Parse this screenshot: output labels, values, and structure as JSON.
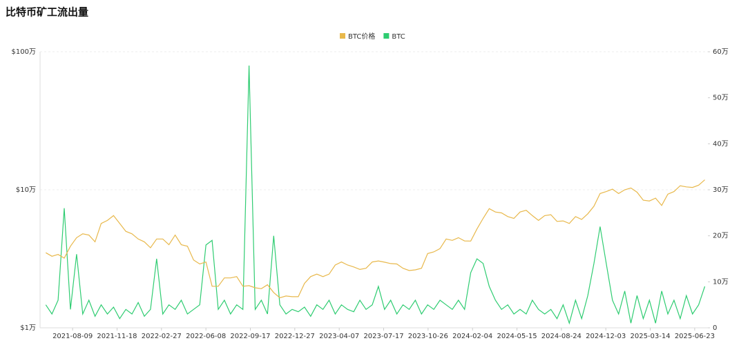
{
  "chart_data": {
    "type": "line",
    "title": "比特币矿工流出量",
    "log_y": true,
    "grid": true,
    "legend": "top",
    "x": [
      "2021-06-09",
      "2021-06-23",
      "2021-07-07",
      "2021-07-21",
      "2021-08-04",
      "2021-08-18",
      "2021-09-01",
      "2021-09-15",
      "2021-09-29",
      "2021-10-13",
      "2021-10-27",
      "2021-11-10",
      "2021-11-24",
      "2021-12-08",
      "2021-12-22",
      "2022-01-05",
      "2022-01-19",
      "2022-02-02",
      "2022-02-16",
      "2022-03-02",
      "2022-03-16",
      "2022-03-30",
      "2022-04-13",
      "2022-04-27",
      "2022-05-11",
      "2022-05-25",
      "2022-06-08",
      "2022-06-22",
      "2022-07-06",
      "2022-07-20",
      "2022-08-03",
      "2022-08-17",
      "2022-08-31",
      "2022-09-14",
      "2022-09-28",
      "2022-10-12",
      "2022-10-26",
      "2022-11-09",
      "2022-11-23",
      "2022-12-07",
      "2022-12-21",
      "2023-01-04",
      "2023-01-18",
      "2023-02-01",
      "2023-02-15",
      "2023-03-01",
      "2023-03-15",
      "2023-03-29",
      "2023-04-12",
      "2023-04-26",
      "2023-05-10",
      "2023-05-24",
      "2023-06-07",
      "2023-06-21",
      "2023-07-05",
      "2023-07-19",
      "2023-08-02",
      "2023-08-16",
      "2023-08-30",
      "2023-09-13",
      "2023-09-27",
      "2023-10-11",
      "2023-10-25",
      "2023-11-08",
      "2023-11-22",
      "2023-12-06",
      "2023-12-20",
      "2024-01-03",
      "2024-01-17",
      "2024-01-31",
      "2024-02-14",
      "2024-02-28",
      "2024-03-13",
      "2024-03-27",
      "2024-04-10",
      "2024-04-24",
      "2024-05-08",
      "2024-05-22",
      "2024-06-05",
      "2024-06-19",
      "2024-07-03",
      "2024-07-17",
      "2024-07-31",
      "2024-08-14",
      "2024-08-28",
      "2024-09-11",
      "2024-09-25",
      "2024-10-09",
      "2024-10-23",
      "2024-11-06",
      "2024-11-20",
      "2024-12-04",
      "2024-12-18",
      "2025-01-01",
      "2025-01-15",
      "2025-01-29",
      "2025-02-12",
      "2025-02-26",
      "2025-03-12",
      "2025-03-26",
      "2025-04-09",
      "2025-04-23",
      "2025-05-07",
      "2025-05-21",
      "2025-06-04",
      "2025-06-18",
      "2025-07-02",
      "2025-07-16"
    ],
    "xlim": [
      "2021-05-27",
      "2025-07-23"
    ],
    "xticks": [
      "2021-08-09",
      "2021-11-18",
      "2022-02-27",
      "2022-06-08",
      "2022-09-17",
      "2022-12-27",
      "2023-04-07",
      "2023-07-17",
      "2023-10-26",
      "2024-02-04",
      "2024-05-15",
      "2024-08-24",
      "2024-12-03",
      "2025-03-14",
      "2025-06-23"
    ],
    "ylim": [
      10000,
      1000000
    ],
    "yticks": [
      {
        "value": 10000,
        "label": "$1万"
      },
      {
        "value": 100000,
        "label": "$10万"
      },
      {
        "value": 1000000,
        "label": "$100万"
      }
    ],
    "y2lim": [
      0,
      600000
    ],
    "y2ticks": [
      0,
      {
        "value": 100000,
        "label": "10万"
      },
      {
        "value": 200000,
        "label": "20万"
      },
      {
        "value": 300000,
        "label": "30万"
      },
      {
        "value": 400000,
        "label": "40万"
      },
      {
        "value": 500000,
        "label": "50万"
      },
      {
        "value": 600000,
        "label": "60万"
      }
    ],
    "series": [
      {
        "name": "BTC价格",
        "color": "#e8b84b",
        "values": [
          35000,
          33000,
          34000,
          32000,
          39000,
          45000,
          48000,
          47000,
          42000,
          57000,
          60000,
          65000,
          57000,
          50000,
          48000,
          44000,
          42000,
          38000,
          44000,
          44000,
          40000,
          47000,
          40000,
          39000,
          31000,
          29000,
          30000,
          20000,
          20000,
          23000,
          23000,
          23500,
          20000,
          20200,
          19500,
          19200,
          20500,
          18000,
          16500,
          17000,
          16800,
          16800,
          21000,
          23500,
          24500,
          23500,
          24500,
          28500,
          30000,
          28500,
          27600,
          26500,
          27000,
          30000,
          30500,
          29900,
          29200,
          29000,
          27000,
          26000,
          26300,
          27000,
          34500,
          35500,
          37500,
          44000,
          43000,
          45000,
          42600,
          42500,
          52000,
          62000,
          73000,
          69000,
          68000,
          64000,
          62000,
          69000,
          71000,
          65000,
          60000,
          65000,
          66000,
          59000,
          59500,
          57000,
          64000,
          61000,
          67000,
          76000,
          94000,
          97000,
          101000,
          94000,
          100000,
          103000,
          96000,
          84000,
          83000,
          87000,
          77000,
          93000,
          97000,
          107000,
          105000,
          104000,
          108000,
          118000
        ]
      },
      {
        "name": "BTC",
        "color": "#2ecc71",
        "axis": "y2",
        "values": [
          50000,
          30000,
          60000,
          260000,
          40000,
          160000,
          30000,
          60000,
          25000,
          50000,
          30000,
          45000,
          20000,
          40000,
          30000,
          55000,
          25000,
          40000,
          150000,
          30000,
          50000,
          40000,
          60000,
          30000,
          40000,
          50000,
          180000,
          190000,
          40000,
          60000,
          30000,
          50000,
          40000,
          570000,
          40000,
          60000,
          30000,
          200000,
          50000,
          30000,
          40000,
          35000,
          45000,
          25000,
          50000,
          40000,
          60000,
          30000,
          50000,
          40000,
          35000,
          60000,
          40000,
          50000,
          90000,
          40000,
          60000,
          30000,
          50000,
          40000,
          60000,
          30000,
          50000,
          40000,
          60000,
          50000,
          40000,
          60000,
          40000,
          120000,
          150000,
          140000,
          90000,
          60000,
          40000,
          50000,
          30000,
          40000,
          30000,
          60000,
          40000,
          30000,
          40000,
          20000,
          50000,
          10000,
          60000,
          20000,
          70000,
          140000,
          220000,
          140000,
          60000,
          30000,
          80000,
          10000,
          70000,
          20000,
          60000,
          10000,
          80000,
          30000,
          60000,
          20000,
          70000,
          30000,
          50000,
          90000
        ]
      }
    ]
  }
}
